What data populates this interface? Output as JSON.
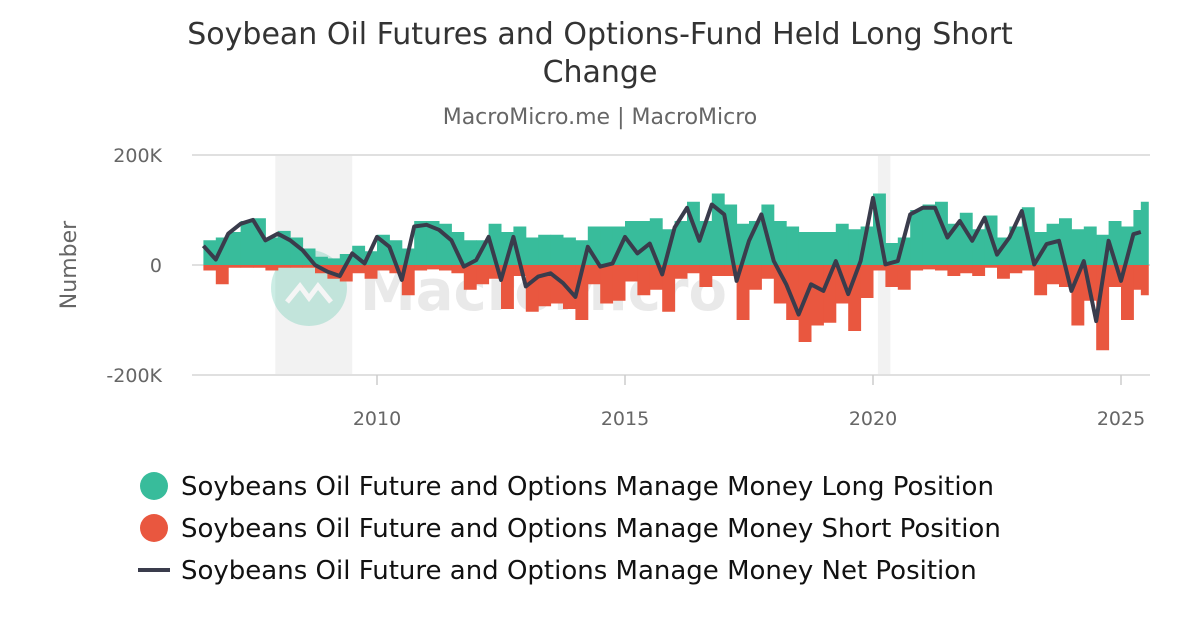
{
  "chart_data": {
    "type": "bar",
    "title": "Soybean Oil Futures and Options-Fund Held Long Short Change",
    "subtitle": "MacroMicro.me | MacroMicro",
    "ylabel": "Number",
    "xlabel": "",
    "ylim": [
      -200000,
      200000
    ],
    "xlim": [
      2006.3,
      2025.6
    ],
    "y_ticks": [
      {
        "v": 200000,
        "label": "200K"
      },
      {
        "v": 0,
        "label": "0"
      },
      {
        "v": -200000,
        "label": "-200K"
      }
    ],
    "x_ticks": [
      {
        "v": 2010,
        "label": "2010"
      },
      {
        "v": 2015,
        "label": "2015"
      },
      {
        "v": 2020,
        "label": "2020"
      },
      {
        "v": 2025,
        "label": "2025"
      }
    ],
    "grid": true,
    "legend_position": "bottom",
    "recession_shading": [
      [
        2007.95,
        2009.5
      ],
      [
        2020.1,
        2020.35
      ]
    ],
    "x": [
      2006.5,
      2006.75,
      2007,
      2007.25,
      2007.5,
      2007.75,
      2008,
      2008.25,
      2008.5,
      2008.75,
      2009,
      2009.25,
      2009.5,
      2009.75,
      2010,
      2010.25,
      2010.5,
      2010.75,
      2011,
      2011.25,
      2011.5,
      2011.75,
      2012,
      2012.25,
      2012.5,
      2012.75,
      2013,
      2013.25,
      2013.5,
      2013.75,
      2014,
      2014.25,
      2014.5,
      2014.75,
      2015,
      2015.25,
      2015.5,
      2015.75,
      2016,
      2016.25,
      2016.5,
      2016.75,
      2017,
      2017.25,
      2017.5,
      2017.75,
      2018,
      2018.25,
      2018.5,
      2018.75,
      2019,
      2019.25,
      2019.5,
      2019.75,
      2020,
      2020.25,
      2020.5,
      2020.75,
      2021,
      2021.25,
      2021.5,
      2021.75,
      2022,
      2022.25,
      2022.5,
      2022.75,
      2023,
      2023.25,
      2023.5,
      2023.75,
      2024,
      2024.25,
      2024.5,
      2024.75,
      2025,
      2025.25,
      2025.4
    ],
    "series": [
      {
        "name": "Soybeans Oil Future and Options Manage Money Long Position",
        "type": "bar",
        "color": "#38bc9b",
        "values": [
          45000,
          50000,
          60000,
          80000,
          85000,
          50000,
          62000,
          50000,
          30000,
          15000,
          12000,
          20000,
          35000,
          25000,
          55000,
          45000,
          30000,
          80000,
          80000,
          75000,
          60000,
          45000,
          45000,
          75000,
          60000,
          70000,
          50000,
          55000,
          55000,
          50000,
          45000,
          70000,
          70000,
          70000,
          80000,
          80000,
          85000,
          65000,
          80000,
          115000,
          80000,
          130000,
          110000,
          75000,
          80000,
          110000,
          80000,
          70000,
          60000,
          60000,
          60000,
          75000,
          65000,
          70000,
          130000,
          40000,
          50000,
          100000,
          110000,
          115000,
          75000,
          95000,
          65000,
          90000,
          50000,
          70000,
          105000,
          60000,
          75000,
          85000,
          65000,
          70000,
          55000,
          80000,
          70000,
          100000,
          115000
        ]
      },
      {
        "name": "Soybeans Oil Future and Options Manage Money Short Position",
        "type": "bar",
        "color": "#e9573f",
        "values": [
          -10000,
          -35000,
          -5000,
          -5000,
          -5000,
          -10000,
          -5000,
          -5000,
          -5000,
          -15000,
          -25000,
          -30000,
          -15000,
          -25000,
          -10000,
          -15000,
          -55000,
          -10000,
          -8000,
          -10000,
          -15000,
          -45000,
          -35000,
          -25000,
          -80000,
          -20000,
          -85000,
          -75000,
          -70000,
          -80000,
          -100000,
          -35000,
          -70000,
          -65000,
          -30000,
          -55000,
          -45000,
          -85000,
          -25000,
          -15000,
          -40000,
          -20000,
          -20000,
          -100000,
          -45000,
          -25000,
          -70000,
          -100000,
          -140000,
          -110000,
          -105000,
          -70000,
          -120000,
          -60000,
          -10000,
          -40000,
          -45000,
          -10000,
          -8000,
          -10000,
          -20000,
          -15000,
          -20000,
          -5000,
          -25000,
          -15000,
          -10000,
          -55000,
          -35000,
          -40000,
          -110000,
          -65000,
          -155000,
          -40000,
          -100000,
          -45000,
          -55000
        ]
      },
      {
        "name": "Soybeans Oil Future and Options Manage Money Net Position",
        "type": "line",
        "color": "#3a3c4c",
        "values": [
          35000,
          10000,
          57000,
          75000,
          82000,
          45000,
          57000,
          45000,
          27000,
          0,
          -12000,
          -20000,
          21000,
          3000,
          51000,
          33000,
          -27000,
          70000,
          73000,
          64000,
          45000,
          -3000,
          9000,
          51000,
          -27000,
          51000,
          -39000,
          -21000,
          -15000,
          -33000,
          -58000,
          33000,
          -3000,
          3000,
          51000,
          21000,
          39000,
          -17000,
          68000,
          104000,
          44000,
          110000,
          92000,
          -29000,
          44000,
          92000,
          7000,
          -35000,
          -90000,
          -35000,
          -47000,
          7000,
          -53000,
          7000,
          122000,
          1000,
          7000,
          92000,
          104000,
          104000,
          50000,
          80000,
          44000,
          86000,
          19000,
          50000,
          98000,
          1000,
          38000,
          44000,
          -47000,
          7000,
          -102000,
          44000,
          -29000,
          56000,
          60000
        ]
      }
    ]
  },
  "watermark": "MacroMicro"
}
